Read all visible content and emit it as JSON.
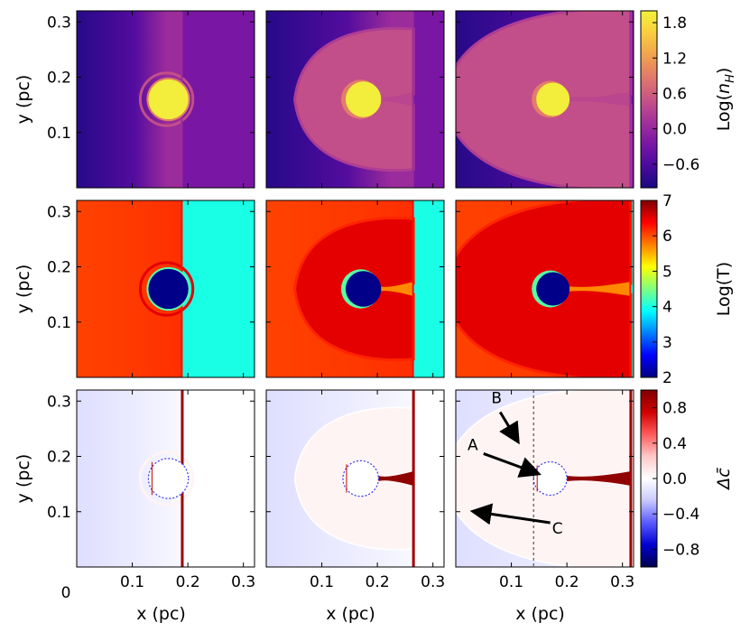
{
  "chart_data": {
    "type": "heatmap",
    "layout": "3x3 grid of simulation snapshots",
    "xlabel": "x (pc)",
    "ylabel": "y (pc)",
    "xlim": [
      0,
      0.32
    ],
    "ylim": [
      0,
      0.32
    ],
    "x_ticks": [
      "0.1",
      "0.2",
      "0.3"
    ],
    "y_ticks": [
      "0.1",
      "0.2",
      "0.3"
    ],
    "origin_label": "0",
    "rows": [
      {
        "name": "density",
        "colorbar_label": "Log(n_H)",
        "colormap": "plasma_r",
        "range": [
          -1.0,
          2.0
        ],
        "ticks": [
          "1.8",
          "1.2",
          "0.6",
          "0.0",
          "−0.6"
        ],
        "tick_values": [
          1.8,
          1.2,
          0.6,
          0.0,
          -0.6
        ]
      },
      {
        "name": "temperature",
        "colorbar_label": "Log(T)",
        "colormap": "jet",
        "range": [
          2,
          7
        ],
        "ticks": [
          "7",
          "6",
          "5",
          "4",
          "3",
          "2"
        ],
        "tick_values": [
          7,
          6,
          5,
          4,
          3,
          2
        ]
      },
      {
        "name": "metallicity_difference",
        "colorbar_label": "Δc̄",
        "colormap": "seismic",
        "range": [
          -1.0,
          1.0
        ],
        "ticks": [
          "0.8",
          "0.4",
          "0.0",
          "−0.4",
          "−0.8"
        ],
        "tick_values": [
          0.8,
          0.4,
          0.0,
          -0.4,
          -0.8
        ]
      }
    ],
    "columns": [
      {
        "snapshot": 1,
        "shock_front_x": 0.19,
        "cloud_center_x": 0.165,
        "cloud_center_y": 0.16,
        "cloud_radius": 0.036
      },
      {
        "snapshot": 2,
        "shock_front_x": 0.265,
        "cloud_center_x": 0.17,
        "cloud_center_y": 0.16,
        "cloud_radius": 0.032
      },
      {
        "snapshot": 3,
        "shock_front_x": 0.315,
        "cloud_center_x": 0.17,
        "cloud_center_y": 0.16,
        "cloud_radius": 0.03
      }
    ],
    "annotations": [
      {
        "label": "A",
        "panel": "row3-col3",
        "from": [
          0.05,
          0.205
        ],
        "to": [
          0.145,
          0.17
        ]
      },
      {
        "label": "B",
        "panel": "row3-col3",
        "from": [
          0.08,
          0.28
        ],
        "to": [
          0.11,
          0.23
        ]
      },
      {
        "label": "C",
        "panel": "row3-col3",
        "from": [
          0.17,
          0.08
        ],
        "to": [
          0.035,
          0.1
        ]
      }
    ],
    "reference_line": {
      "panel": "row3-col3",
      "x": 0.14,
      "style": "dashed"
    }
  }
}
